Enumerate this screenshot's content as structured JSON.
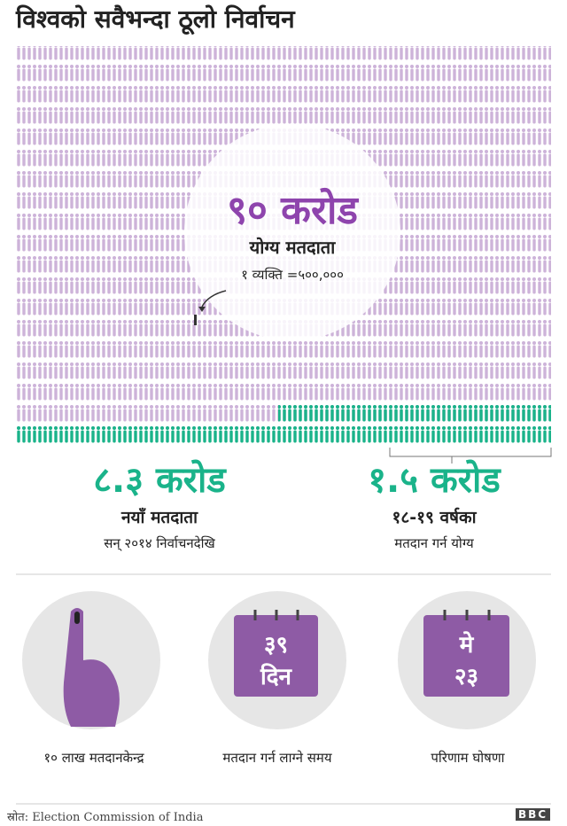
{
  "header": {
    "title": "विश्वको सवैभन्दा ठूलो निर्वाचन"
  },
  "headline": {
    "number": "९० करोड",
    "label": "योग्य मतदाता",
    "key": "१ व्यक्ति =५००,०००"
  },
  "stats": [
    {
      "number": "८.३ करोड",
      "label": "नयाँ मतदाता",
      "note": "सन् २०१४ निर्वाचनदेखि"
    },
    {
      "number": "१.५ करोड",
      "label": "१८-१९ वर्षका",
      "note": "मतदान गर्न योग्य"
    }
  ],
  "facts": [
    {
      "label": "१० लाख मतदानकेन्द्र"
    },
    {
      "top": "३९",
      "bottom": "दिन",
      "label": "मतदान गर्न लाग्ने समय"
    },
    {
      "top": "मे",
      "bottom": "२३",
      "label": "परिणाम घोषणा"
    }
  ],
  "footer": {
    "source": "स्रोत: Election Commission of India",
    "logo": "BBC"
  }
}
